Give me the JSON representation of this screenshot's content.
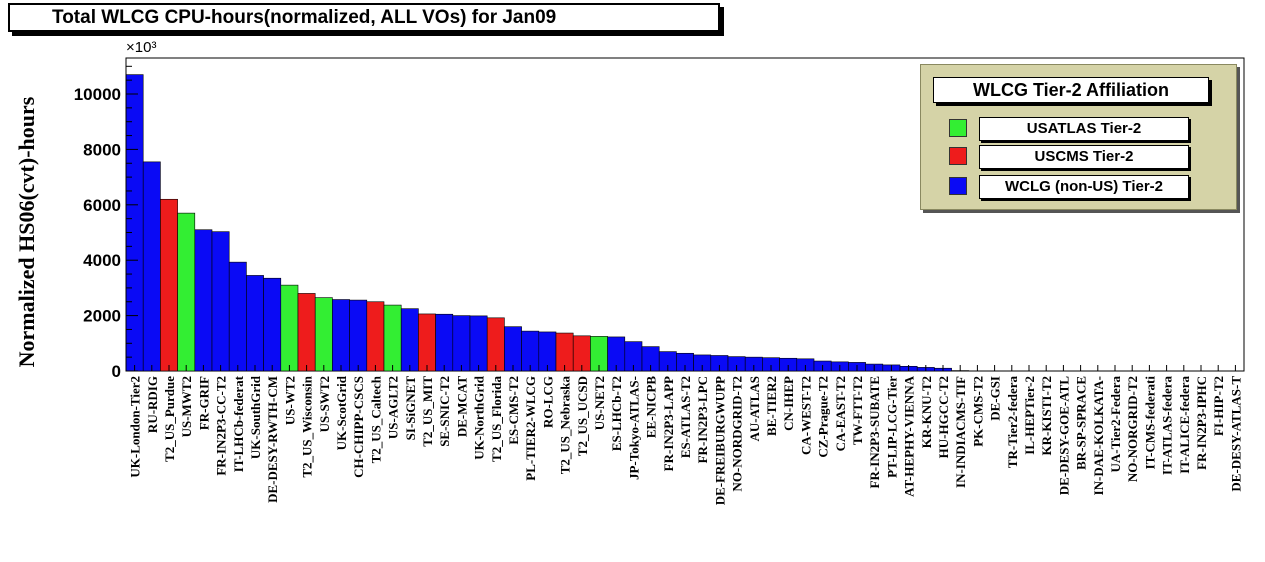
{
  "title": "Total WLCG CPU-hours(normalized, ALL VOs) for Jan09",
  "legend": {
    "title": "WLCG Tier-2 Affiliation",
    "items": [
      {
        "label": "USATLAS Tier-2",
        "color": "#33ee33"
      },
      {
        "label": "USCMS Tier-2",
        "color": "#ee1c1c"
      },
      {
        "label": "WCLG (non-US) Tier-2",
        "color": "#0a0af5"
      }
    ],
    "placement": "top-right"
  },
  "chart_data": {
    "type": "bar",
    "title": "Total WLCG CPU-hours(normalized, ALL VOs) for Jan09",
    "xlabel": "",
    "ylabel": "Normalized HS06(cvt)-hours",
    "y_multiplier": "×10³",
    "ylim": [
      0,
      11300
    ],
    "yticks": [
      0,
      2000,
      4000,
      6000,
      8000,
      10000
    ],
    "grid": false,
    "categories": [
      "UK-London-Tier2",
      "RU-RDIG",
      "T2_US_Purdue",
      "US-MWT2",
      "FR-GRIF",
      "FR-IN2P3-CC-T2",
      "IT-LHCb-federat",
      "UK-SouthGrid",
      "DE-DESY-RWTH-CM",
      "US-WT2",
      "T2_US_Wisconsin",
      "US-SWT2",
      "UK-ScotGrid",
      "CH-CHIPP-CSCS",
      "T2_US_Caltech",
      "US-AGLT2",
      "SI-SiGNET",
      "T2_US_MIT",
      "SE-SNIC-T2",
      "DE-MCAT",
      "UK-NorthGrid",
      "T2_US_Florida",
      "ES-CMS-T2",
      "PL-TIER2-WLCG",
      "RO-LCG",
      "T2_US_Nebraska",
      "T2_US_UCSD",
      "US-NET2",
      "ES-LHCb-T2",
      "JP-Tokyo-ATLAS-",
      "EE-NICPB",
      "FR-IN2P3-LAPP",
      "ES-ATLAS-T2",
      "FR-IN2P3-LPC",
      "DE-FREIBURGWUPP",
      "NO-NORDGRID-T2",
      "AU-ATLAS",
      "BE-TIER2",
      "CN-IHEP",
      "CA-WEST-T2",
      "CZ-Prague-T2",
      "CA-EAST-T2",
      "TW-FTT-T2",
      "FR-IN2P3-SUBATE",
      "PT-LIP-LCG-Tier",
      "AT-HEPHY-VIENNA",
      "KR-KNU-T2",
      "HU-HGCC-T2",
      "IN-INDIACMS-TIF",
      "PK-CMS-T2",
      "DE-GSI",
      "TR-Tier2-federa",
      "IL-HEPTier-2",
      "KR-KISTI-T2",
      "DE-DESY-GOE-ATL",
      "BR-SP-SPRACE",
      "IN-DAE-KOLKATA-",
      "UA-Tier2-Federa",
      "NO-NORGRID-T2",
      "IT-CMS-federati",
      "IT-ATLAS-federa",
      "IT-ALICE-federa",
      "FR-IN2P3-IPHC",
      "FI-HIP-T2",
      "DE-DESY-ATLAS-T"
    ],
    "values": [
      10700,
      7550,
      6200,
      5700,
      5100,
      5030,
      3930,
      3450,
      3350,
      3100,
      2800,
      2650,
      2580,
      2560,
      2500,
      2380,
      2250,
      2060,
      2050,
      2000,
      1990,
      1920,
      1600,
      1440,
      1410,
      1370,
      1270,
      1250,
      1230,
      1060,
      880,
      700,
      640,
      580,
      560,
      520,
      500,
      480,
      460,
      440,
      360,
      330,
      310,
      250,
      220,
      170,
      130,
      100,
      15,
      10,
      8,
      6,
      5,
      4,
      3,
      3,
      2,
      2,
      2,
      1,
      1,
      1,
      1,
      0,
      0
    ],
    "groups": [
      "W",
      "W",
      "C",
      "A",
      "W",
      "W",
      "W",
      "W",
      "W",
      "A",
      "C",
      "A",
      "W",
      "W",
      "C",
      "A",
      "W",
      "C",
      "W",
      "W",
      "W",
      "C",
      "W",
      "W",
      "W",
      "C",
      "C",
      "A",
      "W",
      "W",
      "W",
      "W",
      "W",
      "W",
      "W",
      "W",
      "W",
      "W",
      "W",
      "W",
      "W",
      "W",
      "W",
      "W",
      "W",
      "W",
      "W",
      "W",
      "W",
      "W",
      "W",
      "W",
      "W",
      "W",
      "W",
      "W",
      "W",
      "W",
      "W",
      "W",
      "W",
      "W",
      "W",
      "W",
      "W"
    ],
    "group_colors": {
      "A": "#33ee33",
      "C": "#ee1c1c",
      "W": "#0a0af5"
    }
  }
}
